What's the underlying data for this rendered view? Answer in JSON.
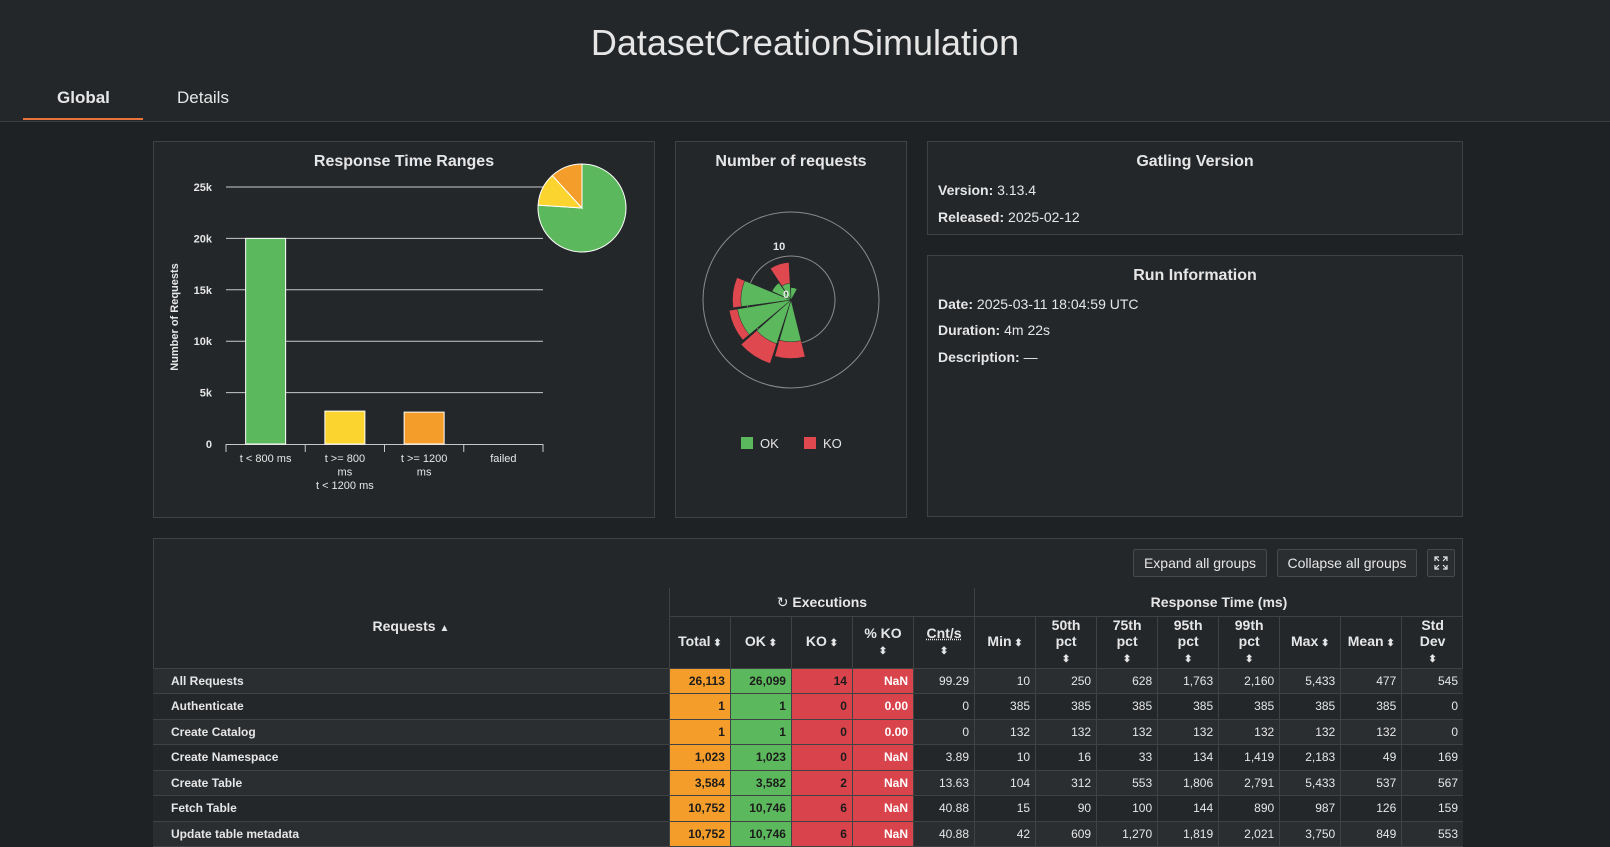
{
  "header": {
    "title": "DatasetCreationSimulation",
    "tabs": [
      {
        "label": "Global",
        "active": true
      },
      {
        "label": "Details",
        "active": false
      }
    ]
  },
  "colors": {
    "ok": "#5cb85c",
    "ko": "#e04850",
    "yellow": "#fbd42f",
    "orange": "#f59d2a"
  },
  "response_chart": {
    "title": "Response Time Ranges"
  },
  "requests_chart": {
    "title": "Number of requests",
    "legend": [
      "OK",
      "KO"
    ]
  },
  "chart_data": [
    {
      "type": "bar",
      "title": "Response Time Ranges",
      "ylabel": "Number of Requests",
      "ylim": [
        0,
        25000
      ],
      "yticks": [
        "0",
        "5k",
        "10k",
        "15k",
        "20k",
        "25k"
      ],
      "categories": [
        [
          "t < 800 ms"
        ],
        [
          "t >= 800",
          "ms",
          "t < 1200 ms"
        ],
        [
          "t >= 1200",
          "ms"
        ],
        [
          "failed"
        ]
      ],
      "values": [
        20000,
        3200,
        3100,
        0
      ],
      "colors": [
        "#5cb85c",
        "#fbd42f",
        "#f59d2a",
        "#e04850"
      ]
    },
    {
      "type": "pie",
      "values": [
        20000,
        3200,
        3100
      ],
      "colors": [
        "#5cb85c",
        "#fbd42f",
        "#f59d2a"
      ]
    },
    {
      "type": "polar",
      "ticks": [
        "0",
        "10"
      ],
      "series": [
        {
          "name": "OK",
          "values": [
            10,
            11,
            13,
            12,
            5,
            4,
            3
          ]
        },
        {
          "name": "KO",
          "values": [
            14,
            16,
            15,
            14,
            4,
            9,
            3
          ]
        }
      ]
    }
  ],
  "gatling": {
    "title": "Gatling Version",
    "version_label": "Version:",
    "version": "3.13.4",
    "released_label": "Released:",
    "released": "2025-02-12"
  },
  "run": {
    "title": "Run Information",
    "date_label": "Date:",
    "date": "2025-03-11 18:04:59 UTC",
    "duration_label": "Duration:",
    "duration": "4m 22s",
    "description_label": "Description:",
    "description": "—"
  },
  "toolbar": {
    "expand": "Expand all groups",
    "collapse": "Collapse all groups"
  },
  "table": {
    "requests_header": "Requests",
    "executions_header": "Executions",
    "response_header": "Response Time (ms)",
    "columns": [
      [
        "Total"
      ],
      [
        "OK"
      ],
      [
        "KO"
      ],
      [
        "% KO"
      ],
      [
        "Cnt/s"
      ],
      [
        "Min"
      ],
      [
        "50th",
        "pct"
      ],
      [
        "75th",
        "pct"
      ],
      [
        "95th",
        "pct"
      ],
      [
        "99th",
        "pct"
      ],
      [
        "Max"
      ],
      [
        "Mean"
      ],
      [
        "Std",
        "Dev"
      ]
    ],
    "rows": [
      [
        "All Requests",
        "26,113",
        "26,099",
        "14",
        "NaN",
        "99.29",
        "10",
        "250",
        "628",
        "1,763",
        "2,160",
        "5,433",
        "477",
        "545"
      ],
      [
        "Authenticate",
        "1",
        "1",
        "0",
        "0.00",
        "0",
        "385",
        "385",
        "385",
        "385",
        "385",
        "385",
        "385",
        "0"
      ],
      [
        "Create Catalog",
        "1",
        "1",
        "0",
        "0.00",
        "0",
        "132",
        "132",
        "132",
        "132",
        "132",
        "132",
        "132",
        "0"
      ],
      [
        "Create Namespace",
        "1,023",
        "1,023",
        "0",
        "NaN",
        "3.89",
        "10",
        "16",
        "33",
        "134",
        "1,419",
        "2,183",
        "49",
        "169"
      ],
      [
        "Create Table",
        "3,584",
        "3,582",
        "2",
        "NaN",
        "13.63",
        "104",
        "312",
        "553",
        "1,806",
        "2,791",
        "5,433",
        "537",
        "567"
      ],
      [
        "Fetch Table",
        "10,752",
        "10,746",
        "6",
        "NaN",
        "40.88",
        "15",
        "90",
        "100",
        "144",
        "890",
        "987",
        "126",
        "159"
      ],
      [
        "Update table metadata",
        "10,752",
        "10,746",
        "6",
        "NaN",
        "40.88",
        "42",
        "609",
        "1,270",
        "1,819",
        "2,021",
        "3,750",
        "849",
        "553"
      ]
    ]
  }
}
